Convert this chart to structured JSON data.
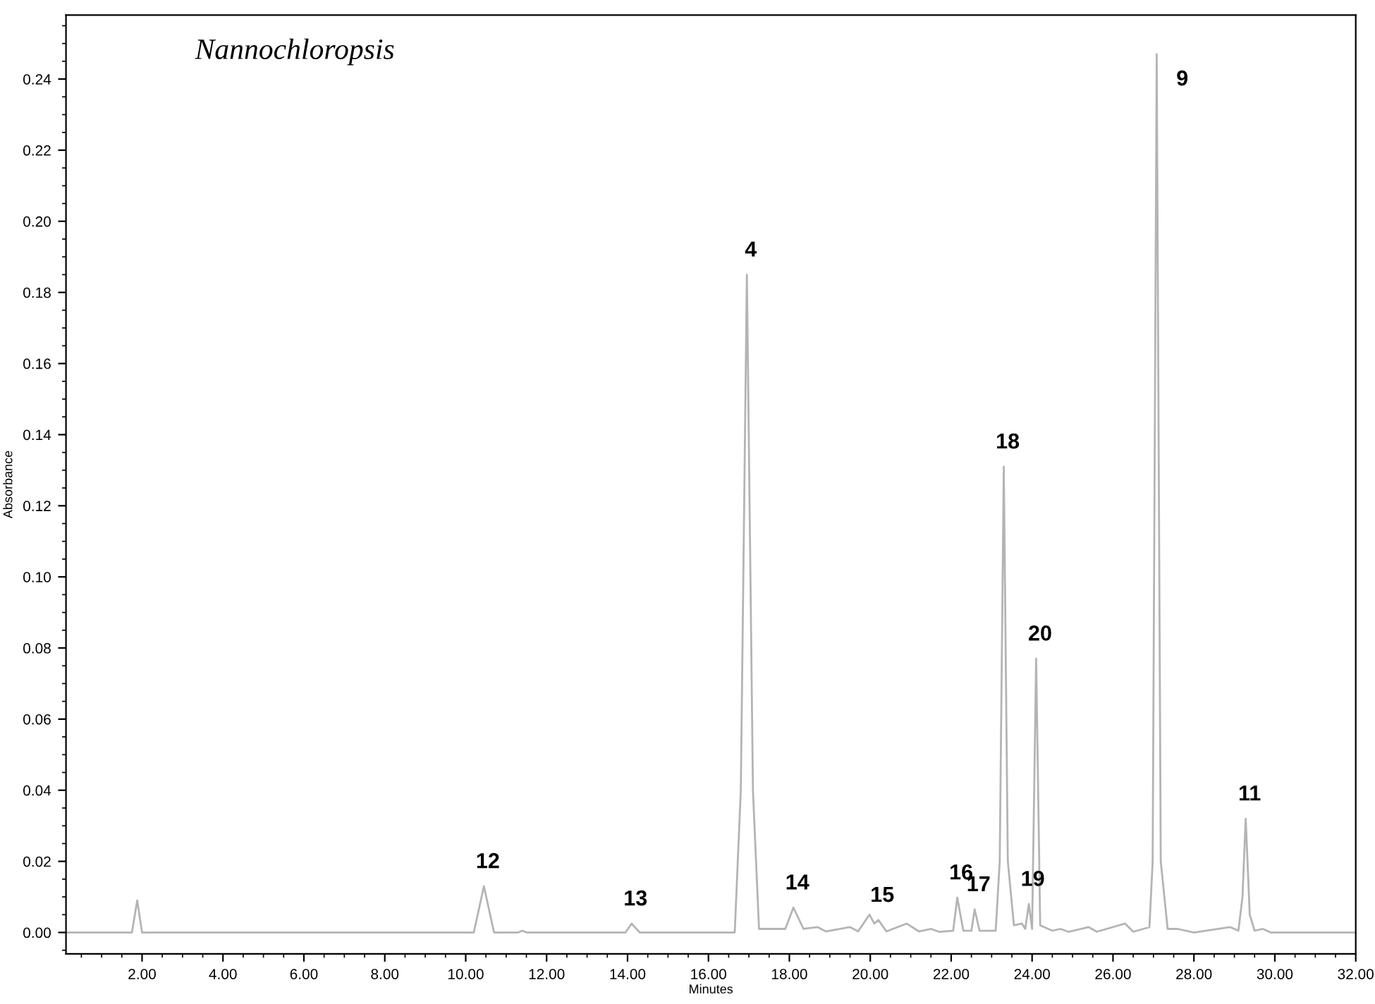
{
  "chart_data": {
    "type": "line",
    "title": "Nannochloropsis",
    "xlabel": "Minutes",
    "ylabel": "Absorbance",
    "xlim": [
      0.12,
      32.0
    ],
    "ylim": [
      -0.006,
      0.258
    ],
    "xticks": [
      {
        "value": 2,
        "label": "2.00"
      },
      {
        "value": 4,
        "label": "4.00"
      },
      {
        "value": 6,
        "label": "6.00"
      },
      {
        "value": 8,
        "label": "8.00"
      },
      {
        "value": 10,
        "label": "10.00"
      },
      {
        "value": 12,
        "label": "12.00"
      },
      {
        "value": 14,
        "label": "14.00"
      },
      {
        "value": 16,
        "label": "16.00"
      },
      {
        "value": 18,
        "label": "18.00"
      },
      {
        "value": 20,
        "label": "20.00"
      },
      {
        "value": 22,
        "label": "22.00"
      },
      {
        "value": 24,
        "label": "24.00"
      },
      {
        "value": 26,
        "label": "26.00"
      },
      {
        "value": 28,
        "label": "28.00"
      },
      {
        "value": 30,
        "label": "30.00"
      },
      {
        "value": 32,
        "label": "32.00"
      }
    ],
    "yticks": [
      {
        "value": 0,
        "label": "0.00"
      },
      {
        "value": 0.02,
        "label": "0.02"
      },
      {
        "value": 0.04,
        "label": "0.04"
      },
      {
        "value": 0.06,
        "label": "0.06"
      },
      {
        "value": 0.08,
        "label": "0.08"
      },
      {
        "value": 0.1,
        "label": "0.10"
      },
      {
        "value": 0.12,
        "label": "0.12"
      },
      {
        "value": 0.14,
        "label": "0.14"
      },
      {
        "value": 0.16,
        "label": "0.16"
      },
      {
        "value": 0.18,
        "label": "0.18"
      },
      {
        "value": 0.2,
        "label": "0.20"
      },
      {
        "value": 0.22,
        "label": "0.22"
      },
      {
        "value": 0.24,
        "label": "0.24"
      }
    ],
    "grid": false,
    "marker": "none",
    "line_style": "solid",
    "series": [
      {
        "color": "#b4b4b4",
        "x": [
          0.12,
          1.75,
          1.88,
          2.0,
          10.2,
          10.45,
          10.7,
          11.3,
          11.4,
          11.5,
          13.95,
          14.1,
          14.3,
          16.65,
          16.8,
          16.95,
          17.1,
          17.25,
          17.9,
          18.1,
          18.35,
          18.7,
          18.9,
          19.5,
          19.7,
          19.98,
          20.1,
          20.2,
          20.4,
          20.9,
          21.2,
          21.5,
          21.7,
          22.05,
          22.15,
          22.3,
          22.5,
          22.58,
          22.7,
          23.1,
          23.2,
          23.3,
          23.4,
          23.55,
          23.75,
          23.83,
          23.92,
          24.0,
          24.1,
          24.2,
          24.5,
          24.7,
          24.9,
          25.4,
          25.6,
          26.3,
          26.5,
          26.9,
          26.98,
          27.08,
          27.18,
          27.35,
          27.6,
          28.0,
          28.9,
          29.1,
          29.2,
          29.28,
          29.38,
          29.5,
          29.7,
          29.9,
          32.0
        ],
        "values": [
          0,
          0,
          0.009,
          0,
          0,
          0.013,
          0,
          0,
          0.0005,
          0,
          0,
          0.0025,
          0,
          0,
          0.04,
          0.185,
          0.04,
          0.001,
          0.001,
          0.007,
          0.001,
          0.0015,
          0.0003,
          0.0015,
          0.0003,
          0.005,
          0.0025,
          0.0035,
          0.0003,
          0.0025,
          0.0003,
          0.001,
          0.0002,
          0.0005,
          0.0098,
          0.0005,
          0.0005,
          0.0065,
          0.0005,
          0.0005,
          0.02,
          0.131,
          0.02,
          0.002,
          0.0025,
          0.001,
          0.008,
          0.001,
          0.077,
          0.002,
          0.0005,
          0.001,
          0.0002,
          0.0015,
          0.0002,
          0.0025,
          0.0002,
          0.0015,
          0.02,
          0.247,
          0.02,
          0.001,
          0.001,
          0,
          0.0015,
          0.0005,
          0.01,
          0.032,
          0.005,
          0.0005,
          0.001,
          0,
          0
        ]
      }
    ],
    "annotations": [
      {
        "text": "12",
        "x": 10.45,
        "y": 0.013
      },
      {
        "text": "13",
        "x": 14.1,
        "y": 0.0025
      },
      {
        "text": "4",
        "x": 16.95,
        "y": 0.185
      },
      {
        "text": "14",
        "x": 18.1,
        "y": 0.007
      },
      {
        "text": "15",
        "x": 20.2,
        "y": 0.0035
      },
      {
        "text": "16",
        "x": 22.15,
        "y": 0.0098
      },
      {
        "text": "17",
        "x": 22.58,
        "y": 0.0065
      },
      {
        "text": "18",
        "x": 23.3,
        "y": 0.131
      },
      {
        "text": "19",
        "x": 23.92,
        "y": 0.008
      },
      {
        "text": "20",
        "x": 24.1,
        "y": 0.077
      },
      {
        "text": "9",
        "x": 27.08,
        "y": 0.247
      },
      {
        "text": "11",
        "x": 29.28,
        "y": 0.032
      }
    ]
  }
}
